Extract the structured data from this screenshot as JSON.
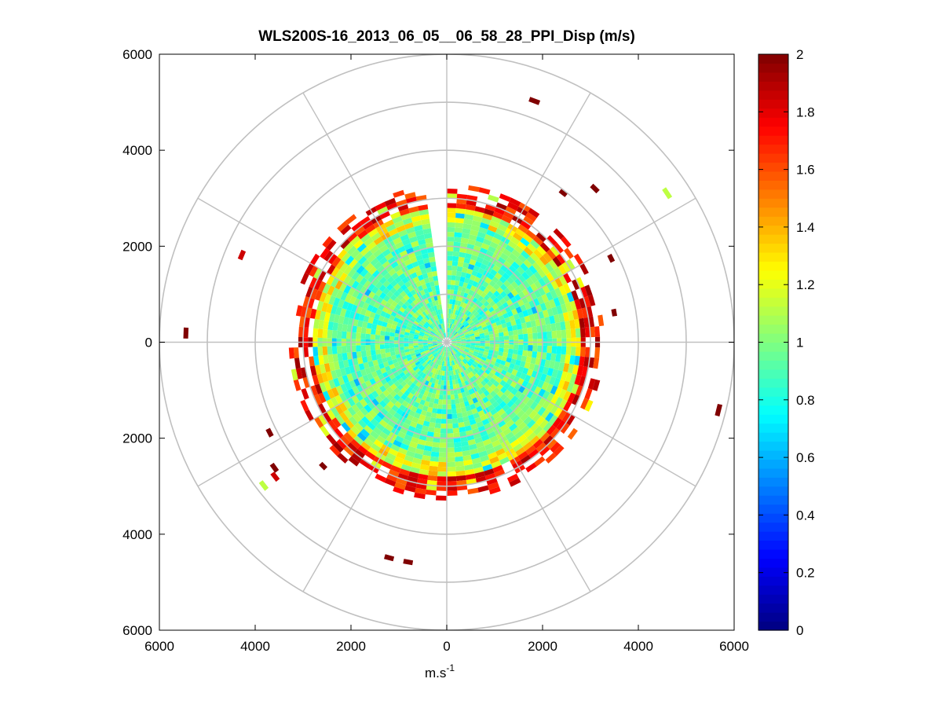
{
  "chart_data": {
    "type": "heatmap",
    "subtype": "polar-ppi",
    "title": "WLS200S-16_2013_06_05__06_58_28_PPI_Disp (m/s)",
    "xlabel": {
      "base": "m.s",
      "exponent": "-1"
    },
    "ylabel": "",
    "xlim": [
      -6000,
      6000
    ],
    "ylim": [
      -6000,
      6000
    ],
    "x_tick_labels": [
      "6000",
      "4000",
      "2000",
      "0",
      "2000",
      "4000",
      "6000"
    ],
    "y_tick_labels": [
      "6000",
      "4000",
      "2000",
      "0",
      "2000",
      "4000",
      "6000"
    ],
    "x_tick_values": [
      -6000,
      -4000,
      -2000,
      0,
      2000,
      4000,
      6000
    ],
    "y_tick_values": [
      6000,
      4000,
      2000,
      0,
      -2000,
      -4000,
      -6000
    ],
    "polar_grid": {
      "rings": [
        1000,
        2000,
        3000,
        4000,
        5000,
        6000
      ],
      "spokes_deg": [
        0,
        30,
        60,
        90,
        120,
        150,
        180,
        210,
        240,
        270,
        300,
        330
      ],
      "color": "#c0c0c0"
    },
    "colorbar": {
      "colormap": "jet",
      "clim": [
        0,
        2
      ],
      "tick_labels": [
        "0",
        "0.2",
        "0.4",
        "0.6",
        "0.8",
        "1",
        "1.2",
        "1.4",
        "1.6",
        "1.8",
        "2"
      ],
      "tick_values": [
        0,
        0.2,
        0.4,
        0.6,
        0.8,
        1,
        1.2,
        1.4,
        1.6,
        1.8,
        2
      ],
      "levels": 64
    },
    "field": {
      "range_bin_m": 100,
      "azimuth_step_deg": 4,
      "max_range_m": 3300,
      "missing_sector_deg": [
        350,
        360
      ],
      "inner_zone": {
        "to_range_m": 2500,
        "typical_value": 0.95
      },
      "transition_zone": {
        "from_range_m": 2500,
        "to_range_m": 2800,
        "typical_value": 1.2
      },
      "edge_zone": {
        "from_range_m": 2800,
        "to_range_m": 3300,
        "typical_value": 1.95
      }
    },
    "isolated_cells": [
      {
        "range": 5500,
        "az": 56,
        "value": 1.12
      },
      {
        "range": 5300,
        "az": 20,
        "value": 2.0
      },
      {
        "range": 5800,
        "az": 104,
        "value": 2.0
      },
      {
        "range": 5400,
        "az": 272,
        "value": 2.0
      },
      {
        "range": 4600,
        "az": 293,
        "value": 1.85
      },
      {
        "range": 4800,
        "az": 232,
        "value": 1.12
      },
      {
        "range": 4600,
        "az": 190,
        "value": 2.0
      },
      {
        "range": 4600,
        "az": 195,
        "value": 2.0
      },
      {
        "range": 4400,
        "az": 44,
        "value": 2.0
      },
      {
        "range": 4500,
        "az": 232,
        "value": 1.85
      },
      {
        "range": 4400,
        "az": 234,
        "value": 2.0
      },
      {
        "range": 4100,
        "az": 243,
        "value": 2.0
      },
      {
        "range": 3600,
        "az": 225,
        "value": 2.0
      },
      {
        "range": 3900,
        "az": 38,
        "value": 2.0
      },
      {
        "range": 3800,
        "az": 63,
        "value": 2.0
      },
      {
        "range": 3500,
        "az": 80,
        "value": 2.0
      }
    ]
  }
}
